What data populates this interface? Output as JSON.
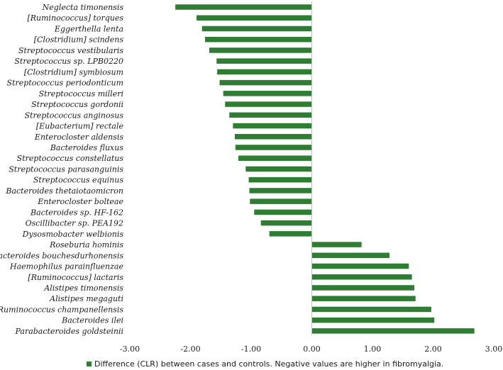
{
  "chart_data": {
    "type": "bar",
    "orientation": "horizontal",
    "categories": [
      "Neglecta timonensis",
      "[Ruminococcus] torques",
      "Eggerthella lenta",
      "[Clostridium] scindens",
      "Streptococcus vestibularis",
      "Streptococcus sp. LPB0220",
      "[Clostridium] symbiosum",
      "Streptococcus periodonticum",
      "Streptococcus milleri",
      "Streptococcus gordonii",
      "Streptococcus anginosus",
      "[Eubacterium] rectale",
      "Enterocloster aldensis",
      "Bacteroides fluxus",
      "Streptococcus constellatus",
      "Streptococcus parasanguinis",
      "Streptococcus equinus",
      "Bacteroides thetaiotaomicron",
      "Enterocloster bolteae",
      "Bacteroides sp. HF-162",
      "Oscillibacter sp. PEA192",
      "Dysosmobacter welbionis",
      "Roseburia hominis",
      "Bacteroides bouchesdurhonensis",
      "Haemophilus parainfluenzae",
      "[Ruminococcus] lactaris",
      "Alistipes timonensis",
      "Alistipes megaguti",
      "Ruminococcus champanellensis",
      "Bacteroides ilei",
      "Parabacteroides goldsteinii"
    ],
    "series": [
      {
        "name": "Difference (CLR) between cases and controls. Negative values are higher in fibromyalgia.",
        "color": "#2e7d32",
        "values": [
          -2.25,
          -1.9,
          -1.81,
          -1.76,
          -1.69,
          -1.57,
          -1.56,
          -1.52,
          -1.46,
          -1.43,
          -1.36,
          -1.3,
          -1.27,
          -1.26,
          -1.21,
          -1.09,
          -1.04,
          -1.03,
          -1.02,
          -0.95,
          -0.84,
          -0.7,
          0.82,
          1.28,
          1.6,
          1.65,
          1.69,
          1.71,
          1.97,
          2.02,
          2.68
        ]
      }
    ],
    "x_ticks": [
      "-3.00",
      "-2.00",
      "-1.00",
      "0.00",
      "1.00",
      "2.00",
      "3.00"
    ],
    "xlim": [
      -3,
      3
    ],
    "grid": false,
    "legend_position": "bottom",
    "title": "",
    "xlabel": "",
    "ylabel": ""
  }
}
